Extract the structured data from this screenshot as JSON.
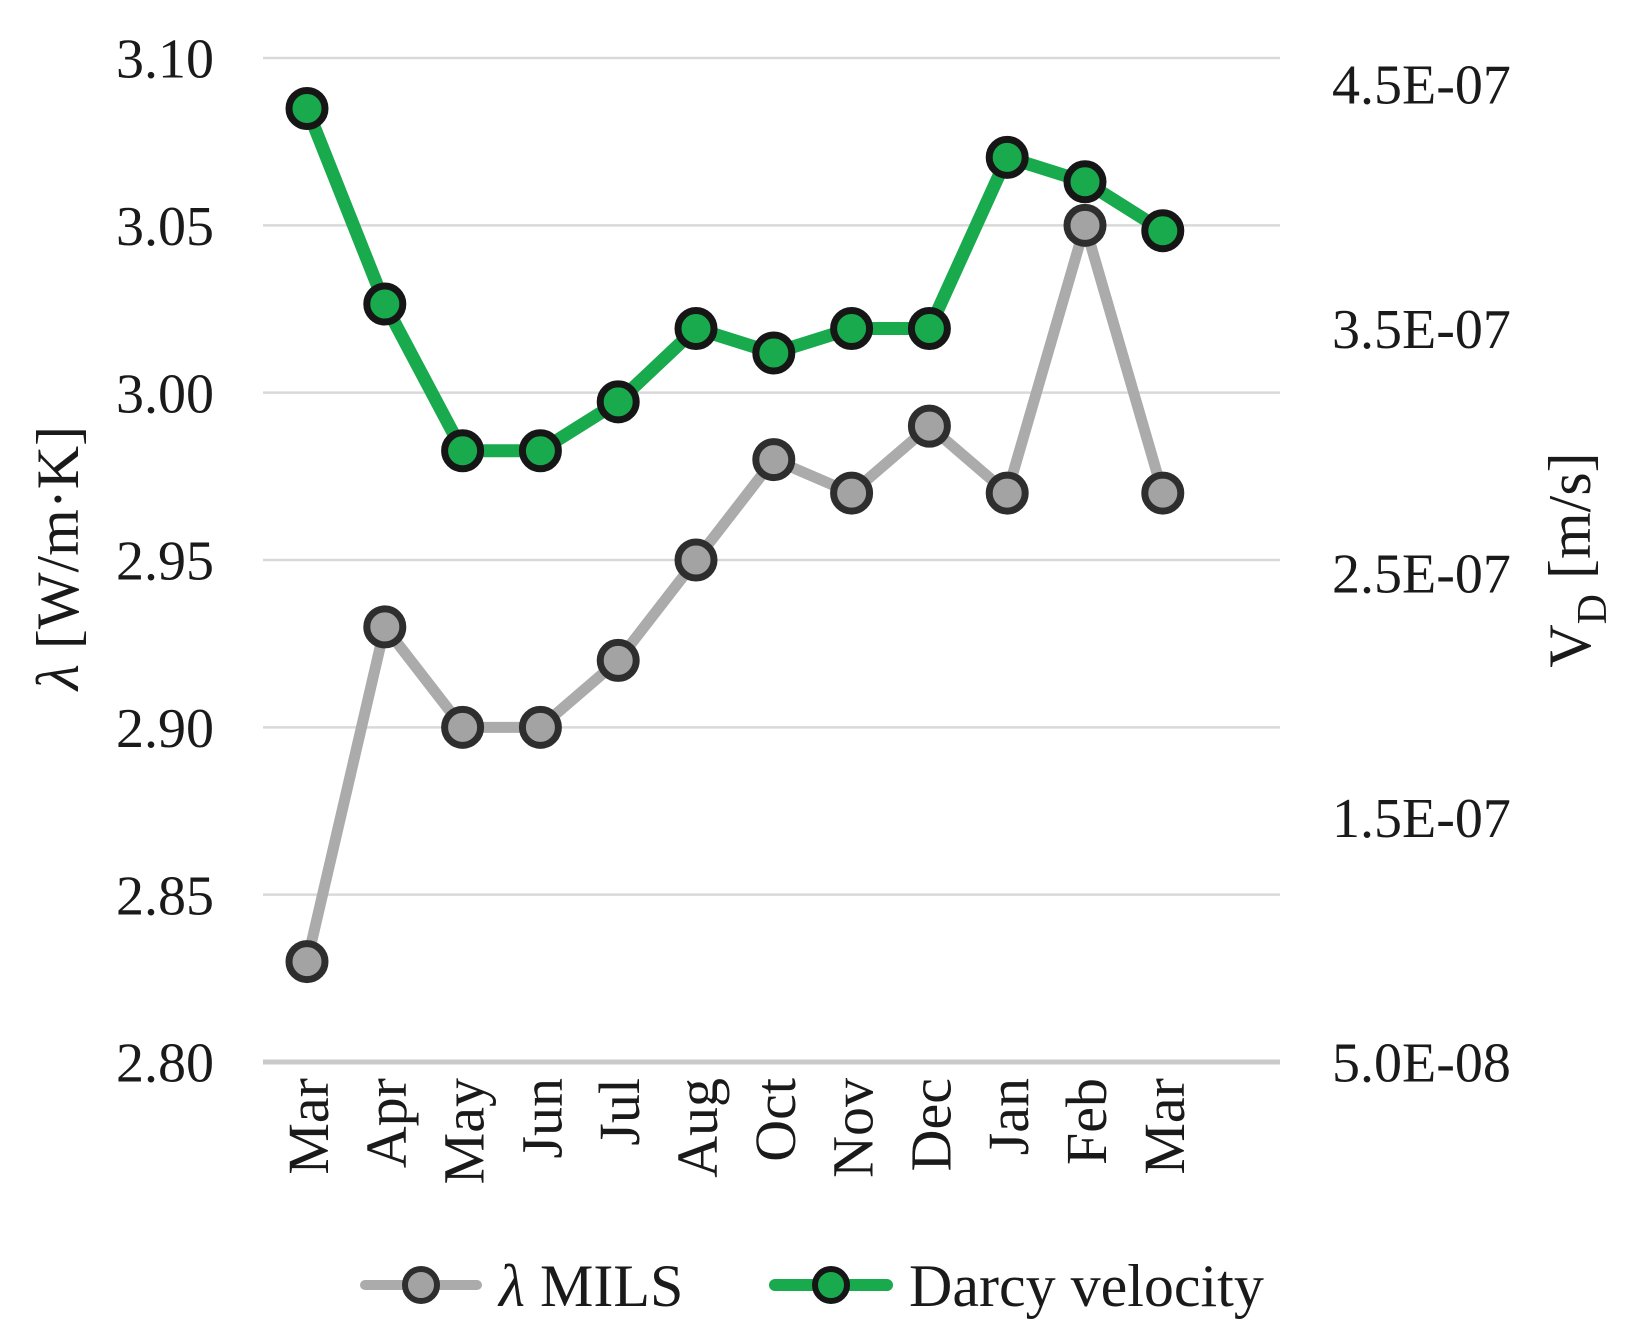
{
  "chart_data": {
    "type": "line",
    "categories": [
      "Mar",
      "Apr",
      "May",
      "Jun",
      "Jul",
      "Aug",
      "Oct",
      "Nov",
      "Dec",
      "Jan",
      "Feb",
      "Mar"
    ],
    "series": [
      {
        "name": "λ MILS",
        "axis": "left",
        "line_color": "#ababab",
        "marker_fill": "#a3a3a3",
        "marker_outline": "#2e2e2e",
        "values": [
          2.83,
          2.93,
          2.9,
          2.9,
          2.92,
          2.95,
          2.98,
          2.97,
          2.99,
          2.97,
          3.05,
          2.97
        ]
      },
      {
        "name": "Darcy velocity",
        "axis": "right",
        "line_color": "#18aa4d",
        "marker_fill": "#18aa4d",
        "marker_outline": "#161616",
        "values": [
          4.4e-07,
          3.6e-07,
          3e-07,
          3e-07,
          3.2e-07,
          3.5e-07,
          3.4e-07,
          3.5e-07,
          3.5e-07,
          4.2e-07,
          4.1e-07,
          3.9e-07
        ]
      }
    ],
    "left_axis": {
      "title": "λ [W/m·K]",
      "min": 2.8,
      "max": 3.1,
      "ticks": [
        "3.10",
        "3.05",
        "3.00",
        "2.95",
        "2.90",
        "2.85",
        "2.80"
      ]
    },
    "right_axis": {
      "title_main": "V",
      "title_subscript": "D",
      "title_unit": "[m/s]",
      "min": 5e-08,
      "max": 4.5e-07,
      "ticks": [
        "4.5E-07",
        "3.5E-07",
        "2.5E-07",
        "1.5E-07",
        "5.0E-08"
      ]
    },
    "legend": {
      "position": "bottom",
      "items": [
        {
          "label": "λ MILS"
        },
        {
          "label": "Darcy velocity"
        }
      ]
    },
    "grid": true,
    "colors": {
      "gridline": "#d9d9d9",
      "axis_line": "#c9c9c9",
      "text": "#1a1a1a",
      "background": "#ffffff"
    }
  }
}
